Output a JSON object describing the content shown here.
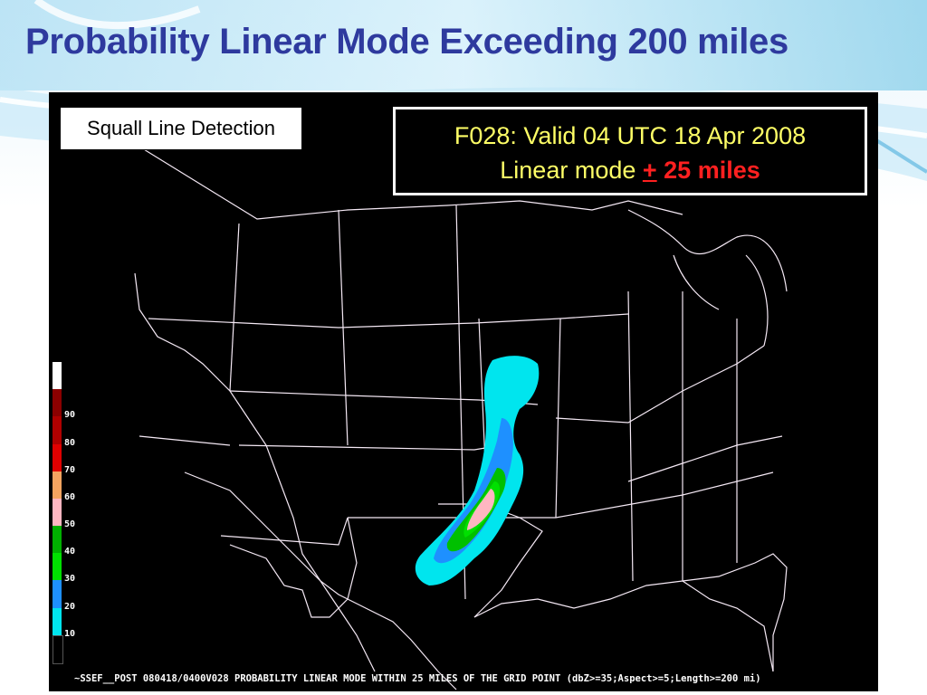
{
  "slide": {
    "title": "Probability Linear Mode Exceeding 200 miles"
  },
  "map": {
    "detection_label": "Squall Line Detection",
    "valid": {
      "line1": "F028: Valid 04 UTC 18 Apr 2008",
      "mode_text": "Linear mode ",
      "plus_minus": "+",
      "distance": " 25 miles"
    },
    "footer": "~SSEF__POST 080418/0400V028 PROBABILITY LINEAR MODE WITHIN 25 MILES OF THE GRID POINT (dbZ>=35;Aspect>=5;Length>=200 mi)",
    "colors": {
      "text_yellow": "#ffff66",
      "text_red": "#ff2020",
      "title_blue": "#2e3a9e",
      "boundary": "#f5e9f5"
    }
  },
  "legend": {
    "items": [
      {
        "label": "",
        "color": "#000000"
      },
      {
        "label": "10",
        "color": "#00e5ee"
      },
      {
        "label": "20",
        "color": "#1e90ff"
      },
      {
        "label": "30",
        "color": "#00e000"
      },
      {
        "label": "40",
        "color": "#00b000"
      },
      {
        "label": "50",
        "color": "#ffb6c1"
      },
      {
        "label": "60",
        "color": "#f4a460"
      },
      {
        "label": "70",
        "color": "#e00000"
      },
      {
        "label": "80",
        "color": "#b00000"
      },
      {
        "label": "90",
        "color": "#8b0000"
      },
      {
        "label": "",
        "color": "#ffffff"
      }
    ]
  }
}
